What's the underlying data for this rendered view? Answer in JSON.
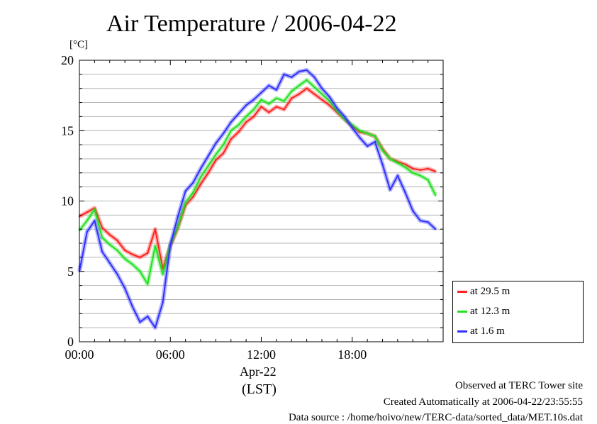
{
  "page": {
    "title": "Air Temperature / 2006-04-22",
    "unit_label": "[°C]",
    "date_label": "Apr-22",
    "time_zone_label": "(LST)",
    "footer": [
      "Observed at TERC Tower site",
      "Created Automatically at 2006-04-22/23:55:55",
      "Data source : /home/hoivo/new/TERC-data/sorted_data/MET.10s.dat"
    ]
  },
  "legend": {
    "items": [
      {
        "label": "at 29.5 m",
        "color": "#ff2020"
      },
      {
        "label": "at 12.3 m",
        "color": "#20e020"
      },
      {
        "label": "at 1.6 m",
        "color": "#3030ff"
      }
    ]
  },
  "chart_data": {
    "type": "line",
    "title": "Air Temperature / 2006-04-22",
    "ylabel": "[°C]",
    "xlabel": "(LST)",
    "xlim": [
      0,
      24
    ],
    "ylim": [
      0,
      20
    ],
    "x_ticks": [
      0,
      6,
      12,
      18
    ],
    "x_tick_labels": [
      "00:00",
      "06:00",
      "12:00",
      "18:00"
    ],
    "y_ticks": [
      0,
      5,
      10,
      15,
      20
    ],
    "y_tick_labels": [
      "0",
      "5",
      "10",
      "15",
      "20"
    ],
    "grid": true,
    "legend_position": "right",
    "x": [
      0,
      0.5,
      1,
      1.5,
      2,
      2.5,
      3,
      3.5,
      4,
      4.5,
      5,
      5.5,
      6,
      6.5,
      7,
      7.5,
      8,
      8.5,
      9,
      9.5,
      10,
      10.5,
      11,
      11.5,
      12,
      12.5,
      13,
      13.5,
      14,
      14.5,
      15,
      15.5,
      16,
      16.5,
      17,
      17.5,
      18,
      18.5,
      19,
      19.5,
      20,
      20.5,
      21,
      21.5,
      22,
      22.5,
      23,
      23.5
    ],
    "series": [
      {
        "name": "at 29.5 m",
        "color": "#ff2020",
        "values": [
          8.9,
          9.2,
          9.5,
          8.1,
          7.6,
          7.2,
          6.5,
          6.2,
          6.0,
          6.3,
          8.0,
          5.2,
          6.8,
          8.1,
          9.7,
          10.3,
          11.2,
          12.0,
          12.9,
          13.4,
          14.4,
          14.9,
          15.6,
          16.0,
          16.7,
          16.3,
          16.7,
          16.5,
          17.3,
          17.6,
          18.0,
          17.6,
          17.2,
          16.8,
          16.3,
          15.8,
          15.3,
          14.9,
          14.8,
          14.6,
          13.7,
          13.0,
          12.8,
          12.6,
          12.3,
          12.2,
          12.3,
          12.1
        ]
      },
      {
        "name": "at 12.3 m",
        "color": "#20e020",
        "values": [
          7.9,
          8.6,
          9.4,
          7.4,
          6.9,
          6.5,
          5.9,
          5.5,
          5.0,
          4.1,
          6.8,
          4.8,
          6.9,
          8.2,
          9.9,
          10.6,
          11.7,
          12.5,
          13.3,
          14.0,
          15.0,
          15.4,
          16.0,
          16.5,
          17.2,
          16.9,
          17.3,
          17.1,
          17.8,
          18.2,
          18.6,
          18.1,
          17.6,
          17.1,
          16.4,
          15.8,
          15.4,
          15.0,
          14.8,
          14.6,
          13.6,
          13.0,
          12.7,
          12.4,
          12.0,
          11.8,
          11.5,
          10.4
        ]
      },
      {
        "name": "at 1.6 m",
        "color": "#3030ff",
        "values": [
          5.0,
          7.8,
          8.6,
          6.4,
          5.6,
          4.8,
          3.8,
          2.5,
          1.4,
          1.8,
          1.0,
          2.8,
          6.9,
          8.9,
          10.7,
          11.3,
          12.3,
          13.2,
          14.1,
          14.8,
          15.6,
          16.2,
          16.8,
          17.2,
          17.7,
          18.2,
          17.9,
          19.0,
          18.8,
          19.2,
          19.3,
          18.8,
          18.0,
          17.4,
          16.6,
          16.0,
          15.2,
          14.5,
          13.9,
          14.2,
          12.6,
          10.8,
          11.8,
          10.6,
          9.3,
          8.6,
          8.5,
          8.0
        ]
      }
    ]
  }
}
